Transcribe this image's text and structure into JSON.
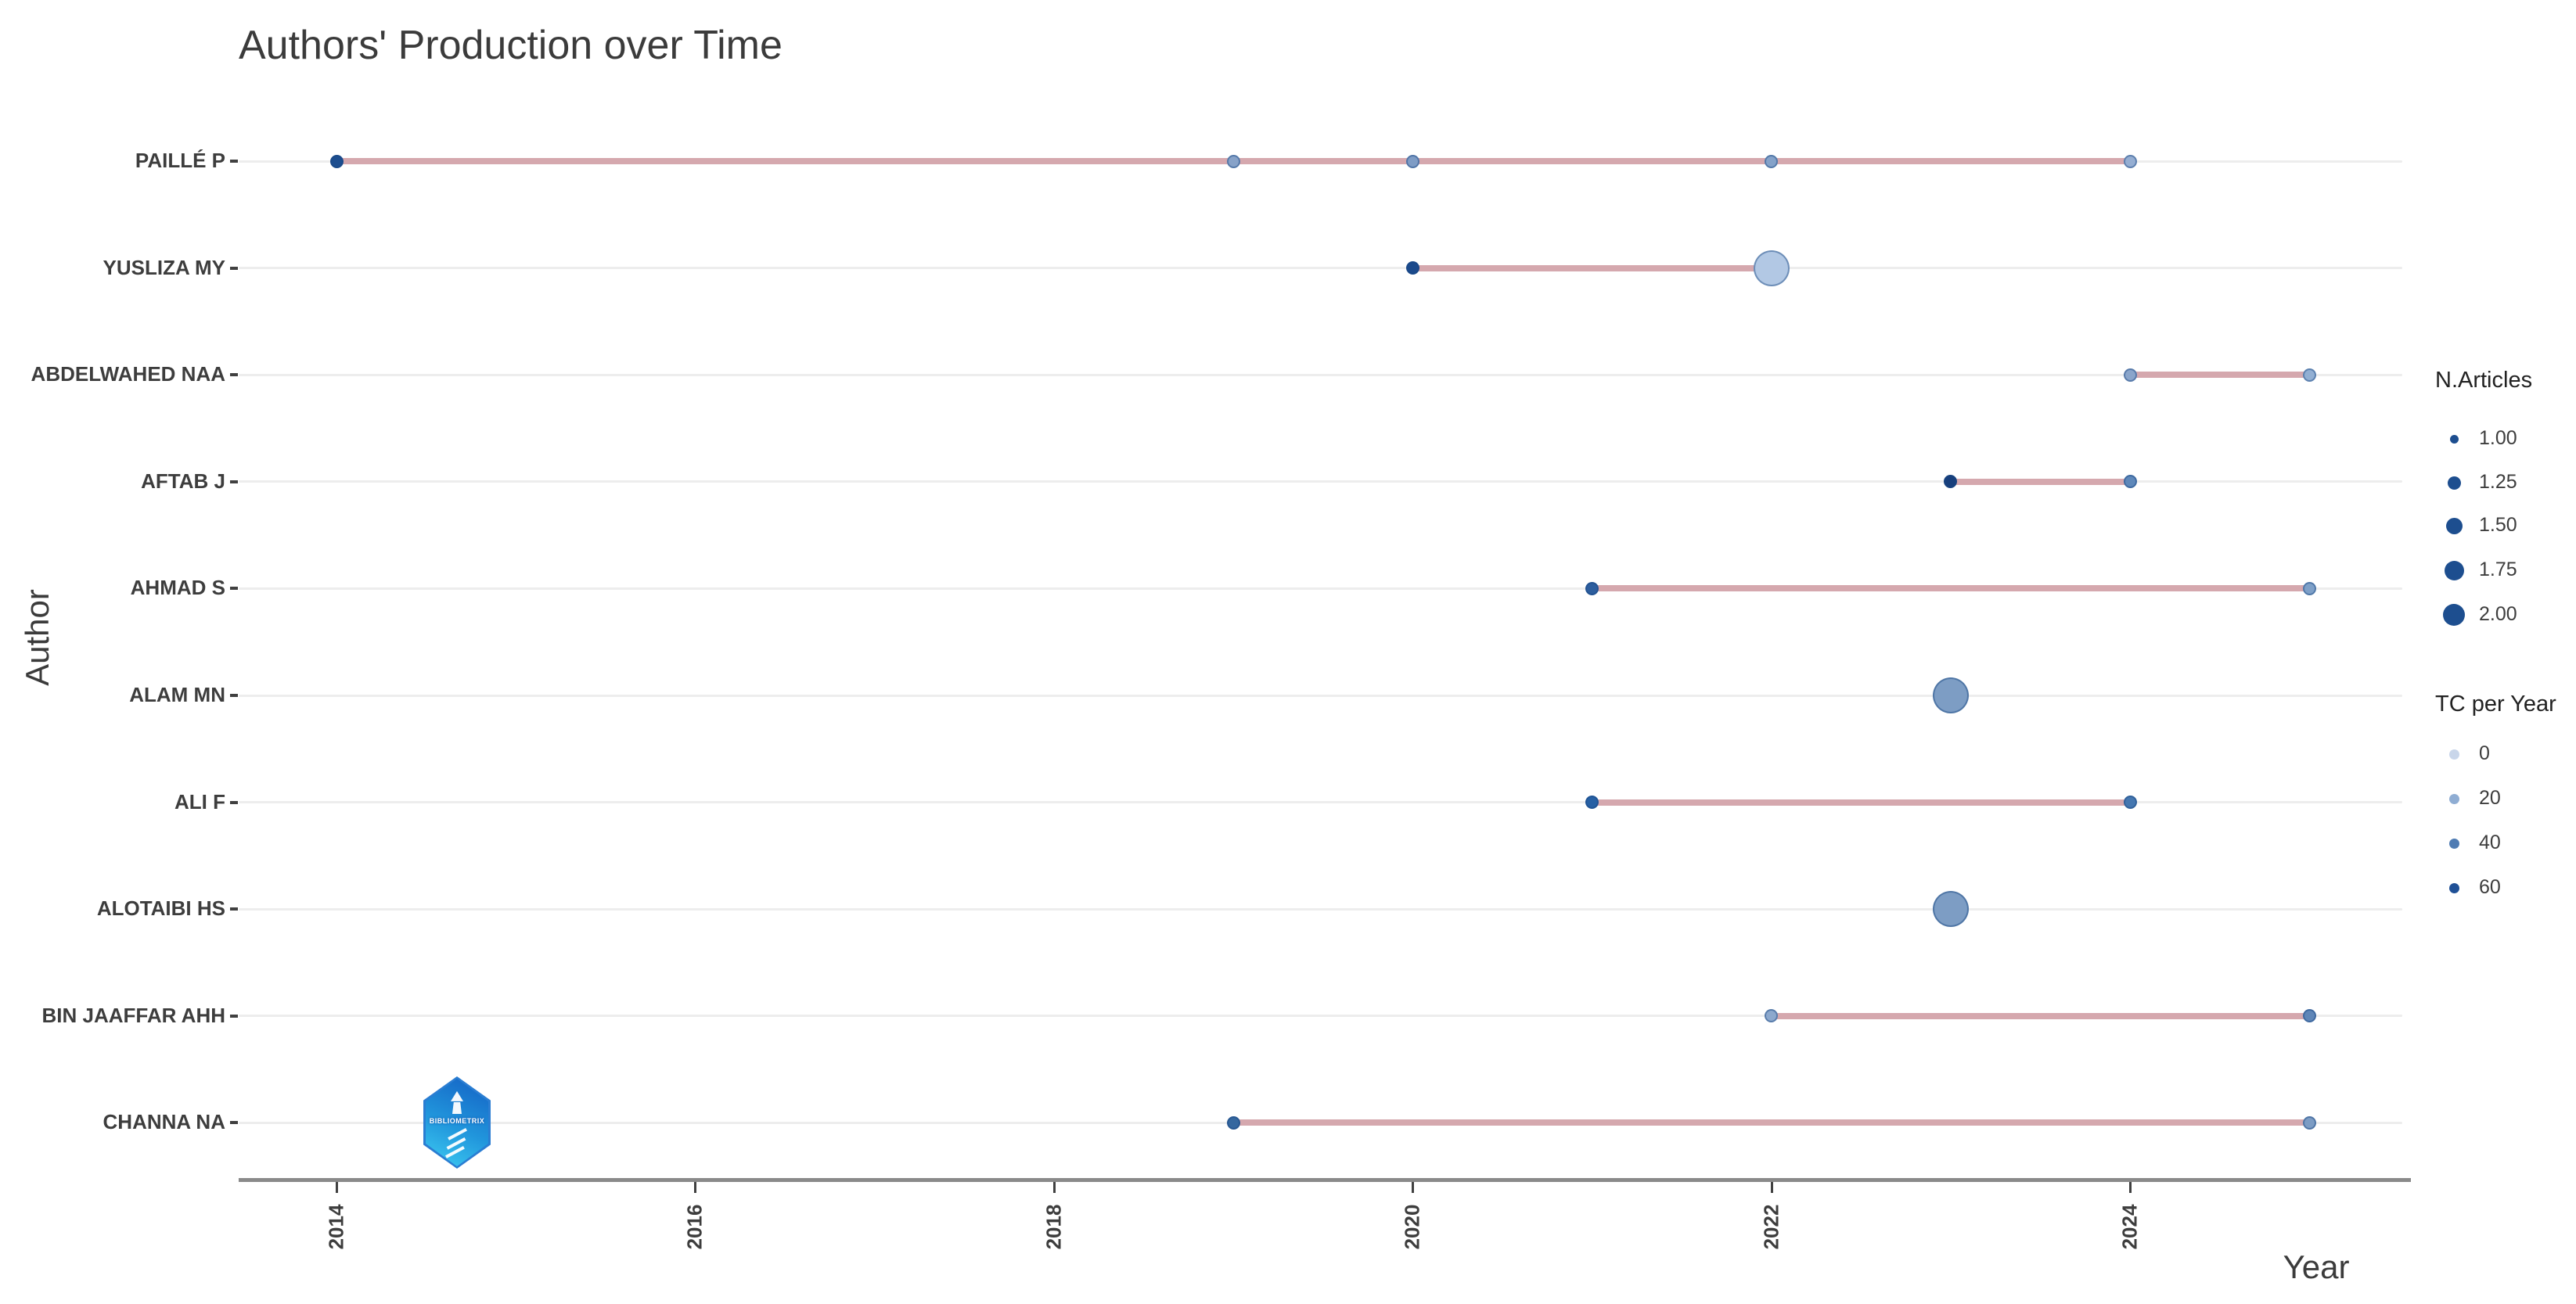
{
  "title": "Authors' Production over Time",
  "x_axis_label": "Year",
  "y_axis_label": "Author",
  "logo": {
    "text": "BIBLIOMETRIX"
  },
  "legend": {
    "size": {
      "title": "N.Articles",
      "dot_color": "#1d4e8f",
      "items": [
        {
          "label": "1.00",
          "value": 1.0
        },
        {
          "label": "1.25",
          "value": 1.25
        },
        {
          "label": "1.50",
          "value": 1.5
        },
        {
          "label": "1.75",
          "value": 1.75
        },
        {
          "label": "2.00",
          "value": 2.0
        }
      ]
    },
    "color": {
      "title": "TC per Year",
      "items": [
        {
          "label": "0",
          "value": 0,
          "color": "#c9d6ea"
        },
        {
          "label": "20",
          "value": 20,
          "color": "#8fadd3"
        },
        {
          "label": "40",
          "value": 40,
          "color": "#4f7cb3"
        },
        {
          "label": "60",
          "value": 60,
          "color": "#1f5096"
        }
      ]
    }
  },
  "chart_data": {
    "type": "scatter",
    "title": "Authors' Production over Time",
    "xlabel": "Year",
    "ylabel": "Author",
    "x_ticks": [
      2014,
      2016,
      2018,
      2020,
      2022,
      2024
    ],
    "x_range": [
      2013.5,
      2025.55
    ],
    "grid": "horizontal",
    "legend_position": "right",
    "encoding_note": "dot size = N.Articles (1.00-2.00), dot color intensity = TC per Year (0-60), line = activity span",
    "authors": [
      {
        "name": "PAILLÉ P",
        "active_span": [
          2014,
          2024
        ],
        "points": [
          {
            "year": 2014,
            "n_articles": 1,
            "tc_per_year_est": 60,
            "color": "#1d4e8f"
          },
          {
            "year": 2019,
            "n_articles": 1,
            "tc_per_year_est": 18,
            "color": "#87a2c8"
          },
          {
            "year": 2020,
            "n_articles": 1,
            "tc_per_year_est": 20,
            "color": "#7e9cc5"
          },
          {
            "year": 2022,
            "n_articles": 1,
            "tc_per_year_est": 18,
            "color": "#84a2c9"
          },
          {
            "year": 2024,
            "n_articles": 1,
            "tc_per_year_est": 10,
            "color": "#95aed2"
          }
        ]
      },
      {
        "name": "YUSLIZA MY",
        "active_span": [
          2020,
          2022
        ],
        "points": [
          {
            "year": 2020,
            "n_articles": 1,
            "tc_per_year_est": 60,
            "color": "#1b4a8c"
          },
          {
            "year": 2022,
            "n_articles": 2,
            "tc_per_year_est": 5,
            "color": "#b2c8e4"
          }
        ]
      },
      {
        "name": "ABDELWAHED NAA",
        "active_span": [
          2024,
          2025
        ],
        "points": [
          {
            "year": 2024,
            "n_articles": 1,
            "tc_per_year_est": 16,
            "color": "#8aa5cb"
          },
          {
            "year": 2025,
            "n_articles": 1,
            "tc_per_year_est": 12,
            "color": "#92afd3"
          }
        ]
      },
      {
        "name": "AFTAB J",
        "active_span": [
          2023,
          2024
        ],
        "points": [
          {
            "year": 2023,
            "n_articles": 1,
            "tc_per_year_est": 60,
            "color": "#173f7c"
          },
          {
            "year": 2024,
            "n_articles": 1,
            "tc_per_year_est": 30,
            "color": "#5e88ba"
          }
        ]
      },
      {
        "name": "AHMAD S",
        "active_span": [
          2021,
          2025
        ],
        "points": [
          {
            "year": 2021,
            "n_articles": 1,
            "tc_per_year_est": 45,
            "color": "#2d5e9e"
          },
          {
            "year": 2025,
            "n_articles": 1,
            "tc_per_year_est": 20,
            "color": "#7ea0c8"
          }
        ]
      },
      {
        "name": "ALAM MN",
        "active_span": null,
        "points": [
          {
            "year": 2023,
            "n_articles": 2,
            "tc_per_year_est": 20,
            "color": "#7d9dc4"
          }
        ]
      },
      {
        "name": "ALI F",
        "active_span": [
          2021,
          2024
        ],
        "points": [
          {
            "year": 2021,
            "n_articles": 1,
            "tc_per_year_est": 47,
            "color": "#2760a4"
          },
          {
            "year": 2024,
            "n_articles": 1,
            "tc_per_year_est": 35,
            "color": "#4577b0"
          }
        ]
      },
      {
        "name": "ALOTAIBI HS",
        "active_span": null,
        "points": [
          {
            "year": 2023,
            "n_articles": 2,
            "tc_per_year_est": 20,
            "color": "#7d9dc4"
          }
        ]
      },
      {
        "name": "BIN JAAFFAR AHH",
        "active_span": [
          2022,
          2025
        ],
        "points": [
          {
            "year": 2022,
            "n_articles": 1,
            "tc_per_year_est": 16,
            "color": "#8ca8cd"
          },
          {
            "year": 2025,
            "n_articles": 1,
            "tc_per_year_est": 28,
            "color": "#5f86b8"
          }
        ]
      },
      {
        "name": "CHANNA NA",
        "active_span": [
          2019,
          2025
        ],
        "points": [
          {
            "year": 2019,
            "n_articles": 1,
            "tc_per_year_est": 40,
            "color": "#35679f"
          },
          {
            "year": 2025,
            "n_articles": 1,
            "tc_per_year_est": 20,
            "color": "#7c9cc4"
          }
        ]
      }
    ]
  }
}
